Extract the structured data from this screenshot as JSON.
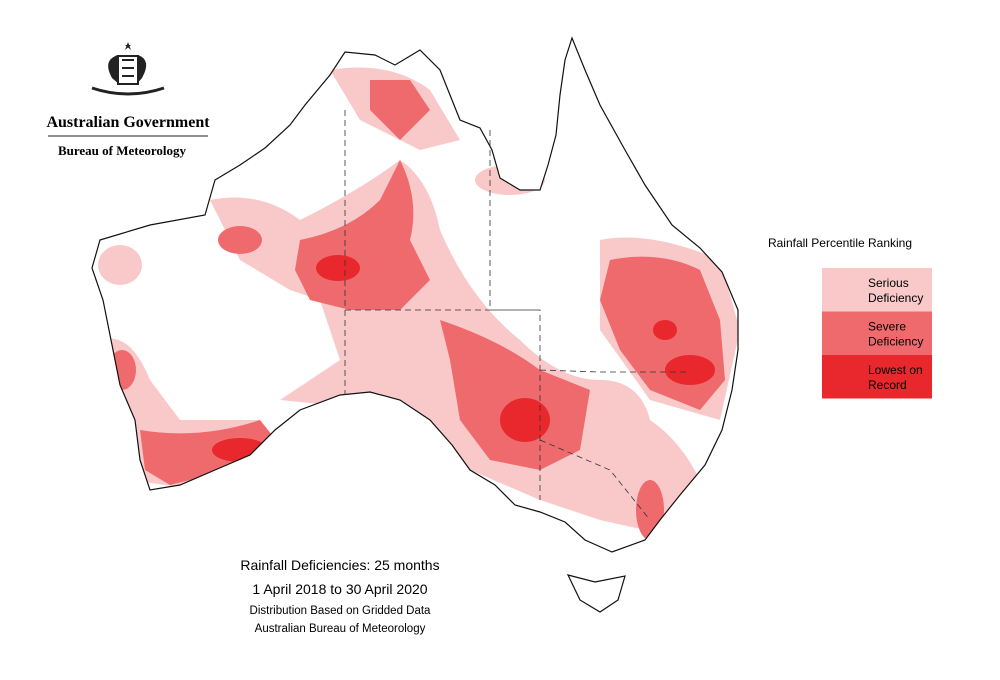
{
  "header": {
    "organisation": "Australian Government",
    "agency": "Bureau of Meteorology"
  },
  "legend": {
    "title": "Rainfall Percentile Ranking",
    "items": [
      {
        "lines": [
          "Serious",
          "Deficiency"
        ],
        "color": "#f9c9ca"
      },
      {
        "lines": [
          "Severe",
          "Deficiency"
        ],
        "color": "#ee6a6d"
      },
      {
        "lines": [
          "Lowest on",
          "Record"
        ],
        "color": "#e8282c"
      }
    ]
  },
  "caption": {
    "title": "Rainfall Deficiencies: 25 months",
    "period": "1 April 2018 to 30 April 2020",
    "note": "Distribution Based on Gridded Data",
    "source": "Australian Bureau of Meteorology"
  }
}
